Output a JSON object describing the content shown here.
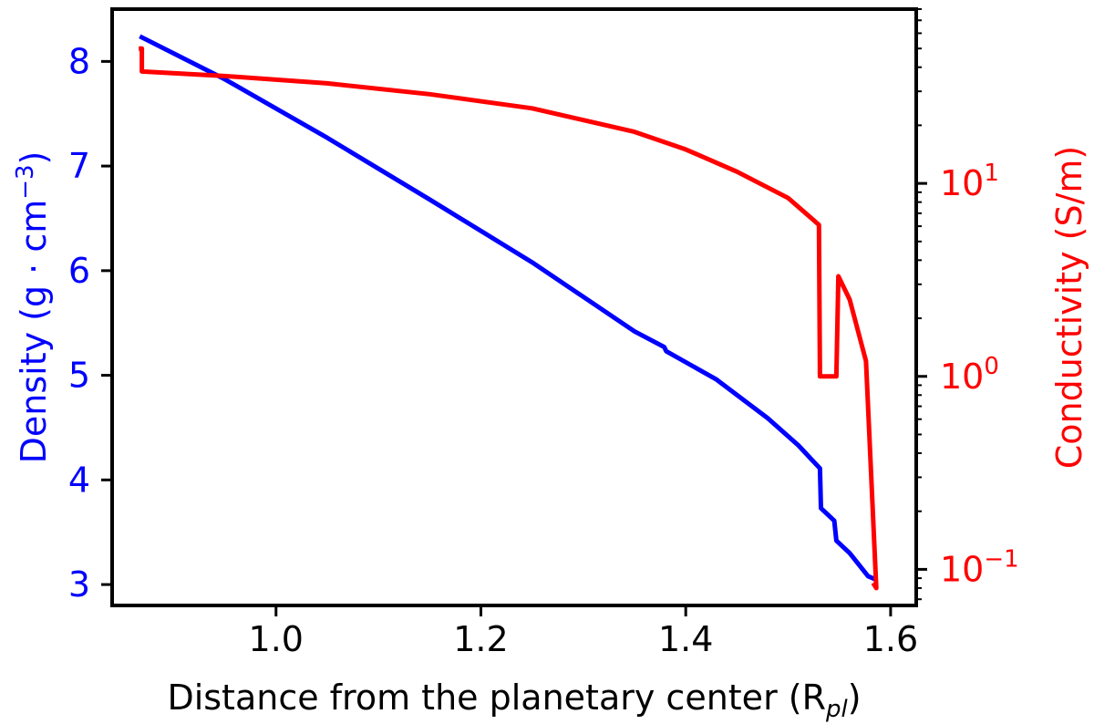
{
  "chart_data": {
    "type": "line",
    "xlabel_main": "Distance from the planetary center (R",
    "xlabel_sub": "pl",
    "xlabel_close": ")",
    "ylabel_left_main": "Density (g · cm",
    "ylabel_left_sup": "−3",
    "ylabel_left_close": ")",
    "ylabel_right": "Conductivity (S/m)",
    "xlim": [
      0.84,
      1.625
    ],
    "ylim_left": [
      2.8,
      8.5
    ],
    "ylim_right": [
      0.065,
      80
    ],
    "right_scale": "log",
    "x_ticks": [
      {
        "value": 1.0,
        "label": "1.0"
      },
      {
        "value": 1.2,
        "label": "1.2"
      },
      {
        "value": 1.4,
        "label": "1.4"
      },
      {
        "value": 1.6,
        "label": "1.6"
      }
    ],
    "y_left_ticks": [
      {
        "value": 3,
        "label": "3"
      },
      {
        "value": 4,
        "label": "4"
      },
      {
        "value": 5,
        "label": "5"
      },
      {
        "value": 6,
        "label": "6"
      },
      {
        "value": 7,
        "label": "7"
      },
      {
        "value": 8,
        "label": "8"
      }
    ],
    "y_right_ticks": [
      {
        "value": 0.1,
        "base": "10",
        "exp": "−1"
      },
      {
        "value": 1,
        "base": "10",
        "exp": "0"
      },
      {
        "value": 10,
        "base": "10",
        "exp": "1"
      }
    ],
    "colors": {
      "density": "#0000ff",
      "conductivity": "#ff0000",
      "axis": "#000000"
    },
    "series": [
      {
        "axis": "left",
        "points": [
          [
            0.867,
            8.24
          ],
          [
            0.95,
            7.83
          ],
          [
            1.05,
            7.27
          ],
          [
            1.15,
            6.68
          ],
          [
            1.25,
            6.08
          ],
          [
            1.35,
            5.42
          ],
          [
            1.379,
            5.27
          ],
          [
            1.381,
            5.23
          ],
          [
            1.43,
            4.96
          ],
          [
            1.48,
            4.59
          ],
          [
            1.51,
            4.33
          ],
          [
            1.531,
            4.11
          ],
          [
            1.532,
            3.73
          ],
          [
            1.545,
            3.61
          ],
          [
            1.547,
            3.42
          ],
          [
            1.56,
            3.3
          ],
          [
            1.578,
            3.08
          ],
          [
            1.585,
            3.05
          ]
        ]
      },
      {
        "axis": "right",
        "points": [
          [
            0.866,
            50
          ],
          [
            0.869,
            50
          ],
          [
            0.869,
            38
          ],
          [
            0.95,
            36
          ],
          [
            1.05,
            33
          ],
          [
            1.15,
            29
          ],
          [
            1.25,
            24.5
          ],
          [
            1.35,
            18.5
          ],
          [
            1.4,
            15
          ],
          [
            1.45,
            11.5
          ],
          [
            1.5,
            8.4
          ],
          [
            1.53,
            6.1
          ],
          [
            1.531,
            1.0
          ],
          [
            1.547,
            1.0
          ],
          [
            1.549,
            3.3
          ],
          [
            1.56,
            2.5
          ],
          [
            1.576,
            1.2
          ],
          [
            1.586,
            0.08
          ],
          [
            1.583,
            0.085
          ]
        ]
      }
    ]
  }
}
